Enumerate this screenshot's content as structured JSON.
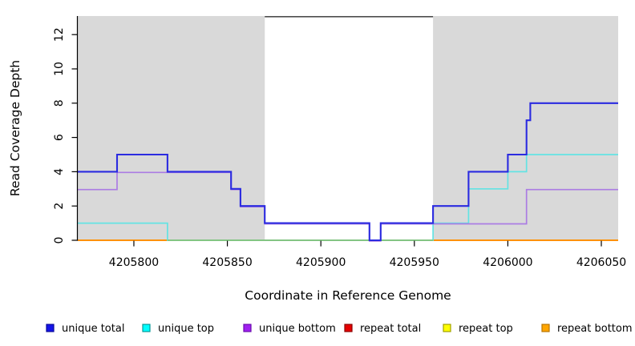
{
  "chart_data": {
    "type": "line",
    "style": "step",
    "title": "",
    "xlabel": "Coordinate in Reference Genome",
    "ylabel": "Read Coverage Depth",
    "xlim": [
      4205770,
      4206059
    ],
    "ylim": [
      0,
      13.08
    ],
    "xticks": [
      4205800,
      4205850,
      4205900,
      4205950,
      4206000,
      4206050
    ],
    "yticks": [
      0,
      2,
      4,
      6,
      8,
      10,
      12
    ],
    "grid": false,
    "plot_bg_color": "#d9d9d9",
    "shaded_regions": [
      {
        "from": 4205770,
        "to": 4205870
      },
      {
        "from": 4205960,
        "to": 4206059
      }
    ],
    "gap_bar": {
      "from": 4205870,
      "to": 4205960,
      "color": "#4d4d4d"
    },
    "series": [
      {
        "name": "unique total",
        "line_color": "#2b2be0",
        "points": [
          [
            4205770,
            4
          ],
          [
            4205791,
            5
          ],
          [
            4205818,
            4
          ],
          [
            4205852,
            3
          ],
          [
            4205857,
            2
          ],
          [
            4205870,
            1
          ],
          [
            4205926,
            0
          ],
          [
            4205932,
            1
          ],
          [
            4205960,
            2
          ],
          [
            4205979,
            4
          ],
          [
            4206000,
            5
          ],
          [
            4206010,
            7
          ],
          [
            4206012,
            8
          ],
          [
            4206059,
            8
          ]
        ]
      },
      {
        "name": "unique top",
        "line_color": "#63e3e3",
        "points": [
          [
            4205770,
            1
          ],
          [
            4205818,
            0
          ],
          [
            4205960,
            1
          ],
          [
            4205979,
            3
          ],
          [
            4206000,
            4
          ],
          [
            4206010,
            5
          ],
          [
            4206059,
            5
          ]
        ]
      },
      {
        "name": "unique bottom",
        "line_color": "#ab7ce3",
        "points": [
          [
            4205770,
            3
          ],
          [
            4205791,
            4
          ],
          [
            4205852,
            3
          ],
          [
            4205857,
            2
          ],
          [
            4205870,
            1
          ],
          [
            4205926,
            0
          ],
          [
            4205932,
            1
          ],
          [
            4206010,
            3
          ],
          [
            4206059,
            3
          ]
        ]
      },
      {
        "name": "repeat total",
        "line_color": "#dd0000",
        "points": [
          [
            4205770,
            0
          ],
          [
            4206059,
            0
          ]
        ]
      },
      {
        "name": "repeat top",
        "line_color": "#ffff00",
        "points": [
          [
            4205770,
            0
          ],
          [
            4206059,
            0
          ]
        ]
      },
      {
        "name": "repeat bottom",
        "line_color": "#ff9100",
        "points": [
          [
            4205770,
            0
          ],
          [
            4206059,
            0
          ]
        ]
      }
    ],
    "zero_overlap_segment": {
      "from": 4205818,
      "to": 4205960,
      "color": "#84c584"
    }
  },
  "legend": {
    "items": [
      {
        "label": "unique total",
        "fill": "#1414e8",
        "border": "#0a0a99"
      },
      {
        "label": "unique top",
        "fill": "#00ffff",
        "border": "#089898"
      },
      {
        "label": "unique bottom",
        "fill": "#a020f0",
        "border": "#6a0dad"
      },
      {
        "label": "repeat total",
        "fill": "#e60000",
        "border": "#8b0000"
      },
      {
        "label": "repeat top",
        "fill": "#ffff00",
        "border": "#a0a000"
      },
      {
        "label": "repeat bottom",
        "fill": "#ffa500",
        "border": "#b87400"
      }
    ]
  }
}
